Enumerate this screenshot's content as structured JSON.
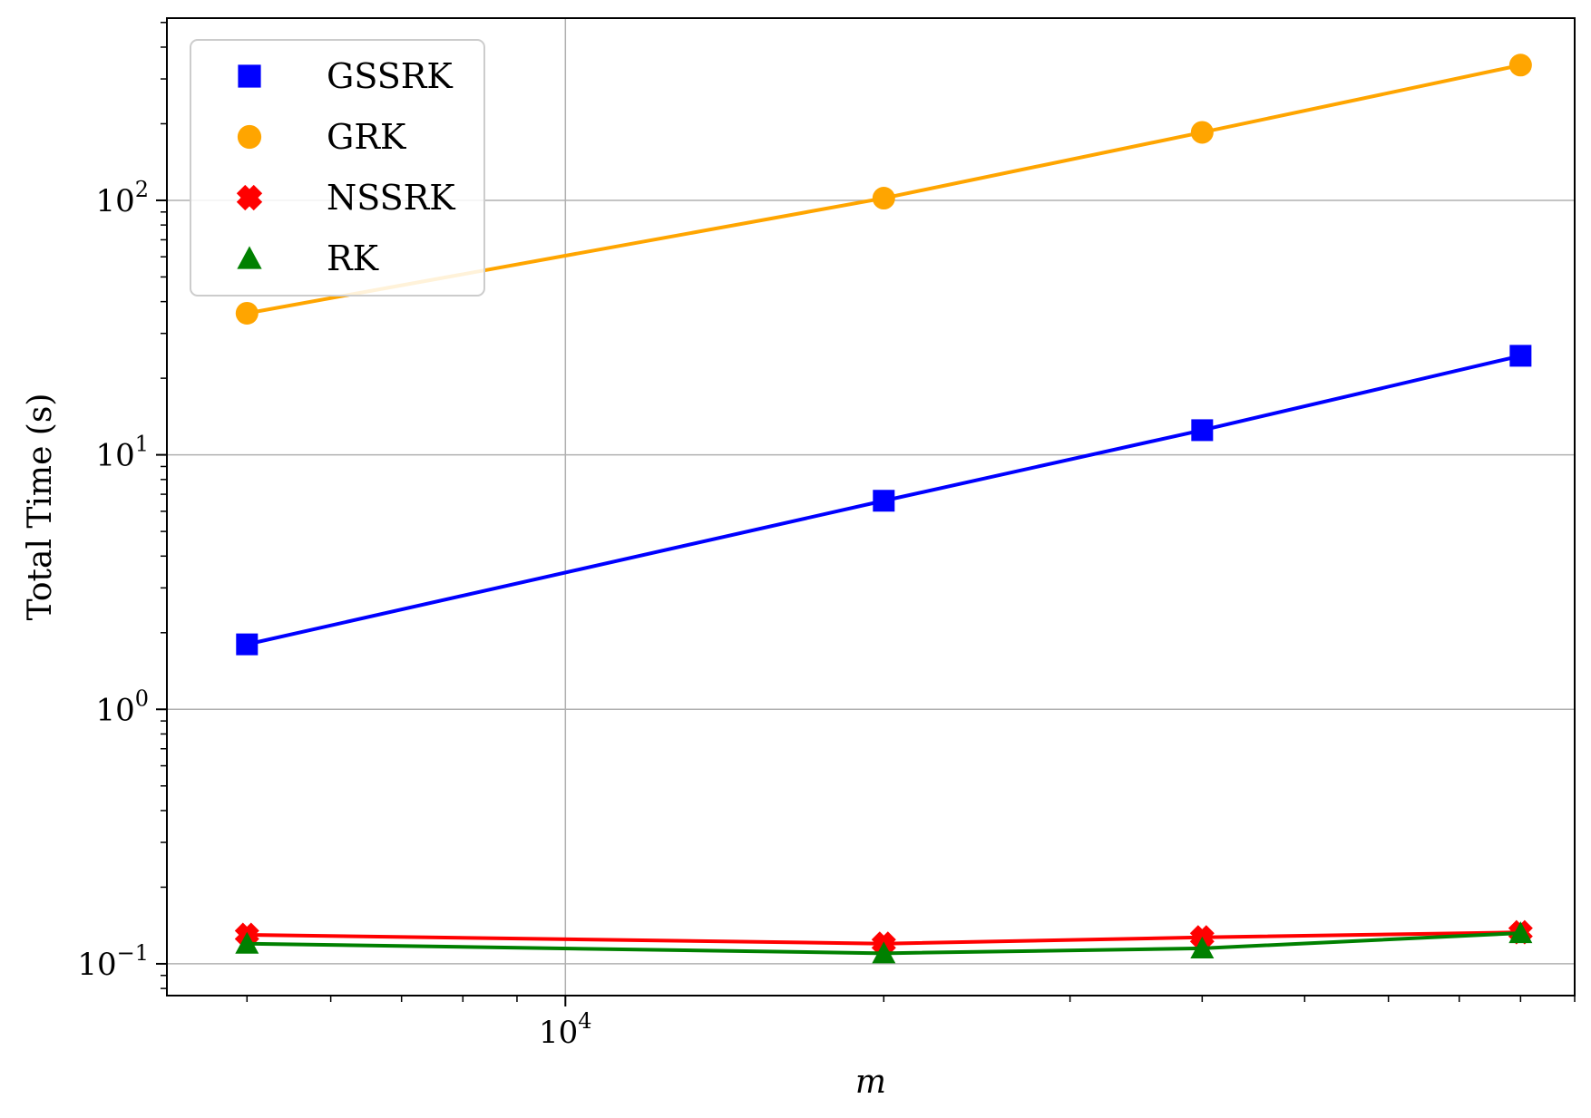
{
  "chart_data": {
    "type": "line",
    "x_scale": "log",
    "y_scale": "log",
    "xlabel": "m",
    "ylabel": "Total Time (s)",
    "xlim": [
      4200,
      90000
    ],
    "ylim": [
      0.075,
      520
    ],
    "grid": true,
    "legend_position": "top-left",
    "x_major_ticks": [
      {
        "value": 10000,
        "base": "10",
        "exp": "4"
      }
    ],
    "y_major_ticks": [
      {
        "value": 0.1,
        "base": "10",
        "exp": "−1"
      },
      {
        "value": 1,
        "base": "10",
        "exp": "0"
      },
      {
        "value": 10,
        "base": "10",
        "exp": "1"
      },
      {
        "value": 100,
        "base": "10",
        "exp": "2"
      }
    ],
    "x": [
      5000,
      20000,
      40000,
      80000
    ],
    "series": [
      {
        "name": "GSSRK",
        "marker": "square",
        "color": "#0000ff",
        "values": [
          1.8,
          6.6,
          12.5,
          24.5
        ]
      },
      {
        "name": "GRK",
        "marker": "circle",
        "color": "#ffa500",
        "values": [
          36,
          102,
          185,
          340
        ]
      },
      {
        "name": "NSSRK",
        "marker": "x",
        "color": "#ff0000",
        "values": [
          0.13,
          0.12,
          0.127,
          0.133
        ]
      },
      {
        "name": "RK",
        "marker": "triangle",
        "color": "#008000",
        "values": [
          0.12,
          0.11,
          0.115,
          0.132
        ]
      }
    ]
  }
}
